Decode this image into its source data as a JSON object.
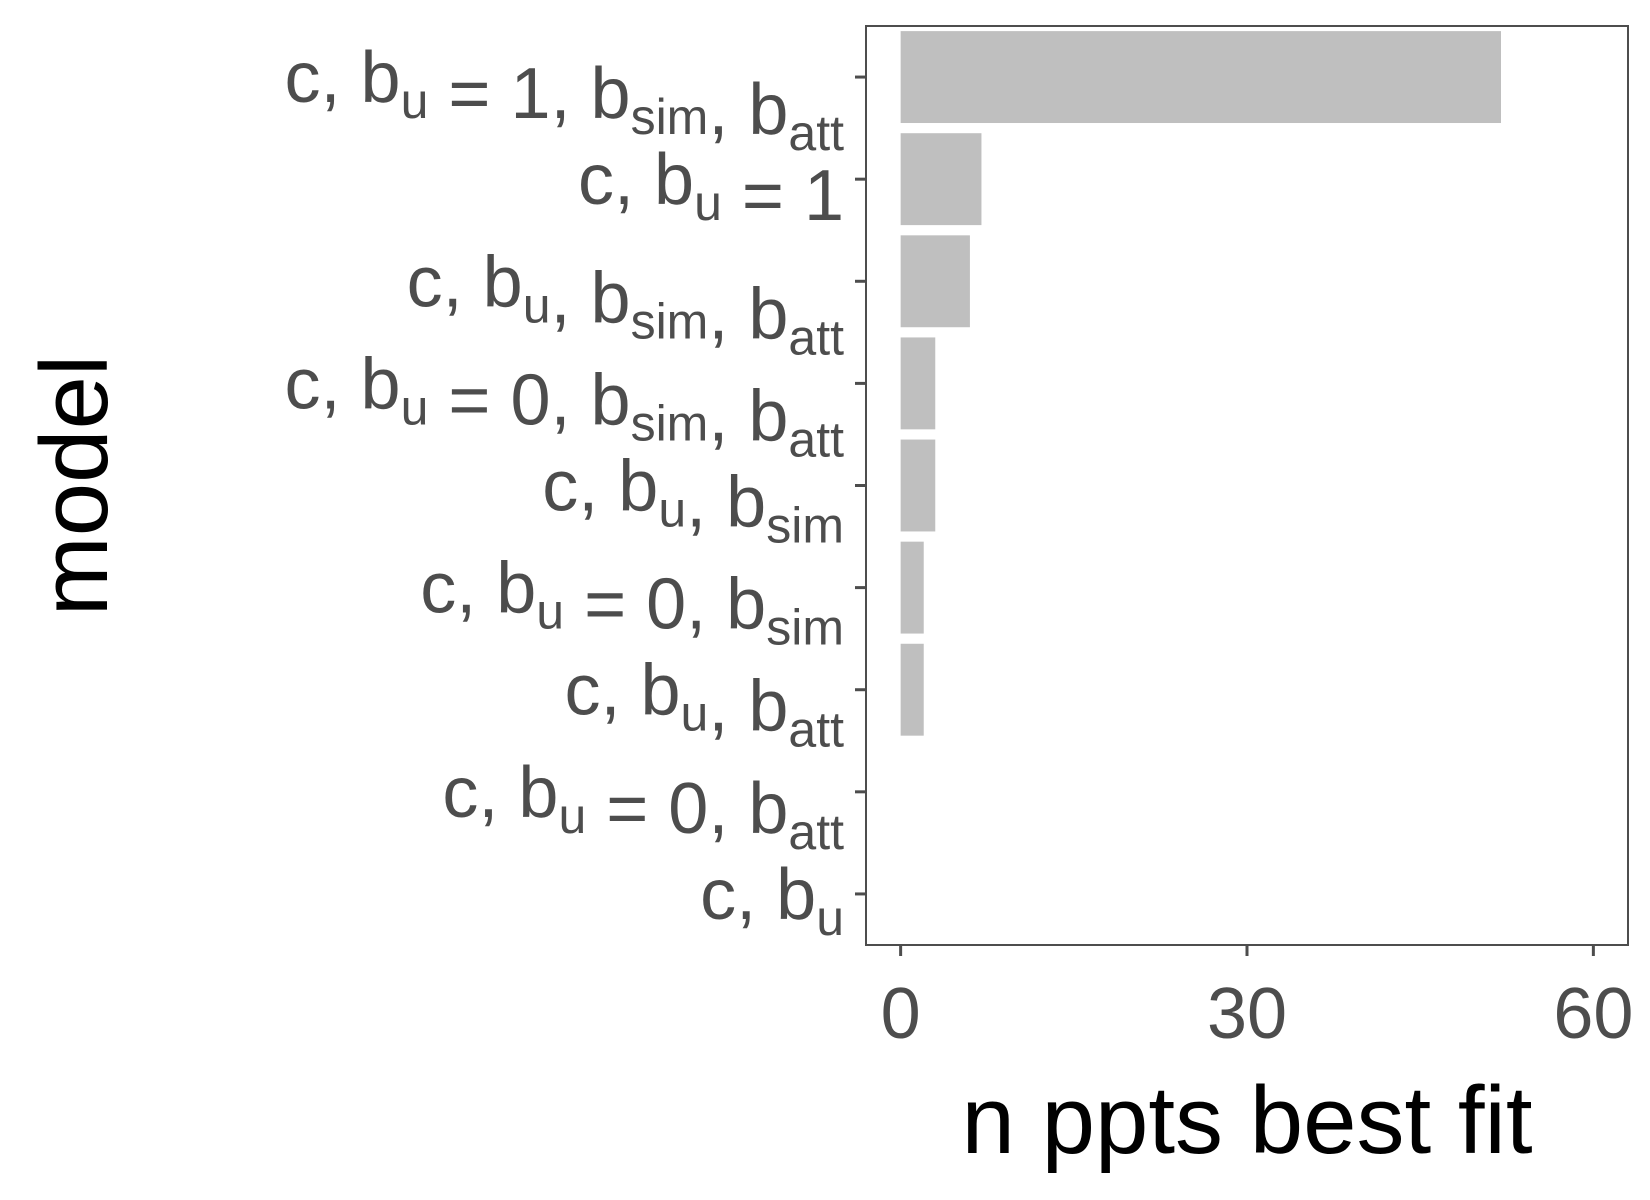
{
  "chart_data": {
    "type": "bar",
    "orientation": "horizontal",
    "categories": [
      [
        {
          "t": "c, b"
        },
        {
          "t": "u",
          "s": true
        },
        {
          "t": " = 1, b"
        },
        {
          "t": "sim",
          "s": true
        },
        {
          "t": ", b"
        },
        {
          "t": "att",
          "s": true
        }
      ],
      [
        {
          "t": "c, b"
        },
        {
          "t": "u",
          "s": true
        },
        {
          "t": " = 1"
        }
      ],
      [
        {
          "t": "c, b"
        },
        {
          "t": "u",
          "s": true
        },
        {
          "t": ", b"
        },
        {
          "t": "sim",
          "s": true
        },
        {
          "t": ", b"
        },
        {
          "t": "att",
          "s": true
        }
      ],
      [
        {
          "t": "c, b"
        },
        {
          "t": "u",
          "s": true
        },
        {
          "t": " = 0, b"
        },
        {
          "t": "sim",
          "s": true
        },
        {
          "t": ", b"
        },
        {
          "t": "att",
          "s": true
        }
      ],
      [
        {
          "t": "c, b"
        },
        {
          "t": "u",
          "s": true
        },
        {
          "t": ", b"
        },
        {
          "t": "sim",
          "s": true
        }
      ],
      [
        {
          "t": "c, b"
        },
        {
          "t": "u",
          "s": true
        },
        {
          "t": " = 0, b"
        },
        {
          "t": "sim",
          "s": true
        }
      ],
      [
        {
          "t": "c, b"
        },
        {
          "t": "u",
          "s": true
        },
        {
          "t": ", b"
        },
        {
          "t": "att",
          "s": true
        }
      ],
      [
        {
          "t": "c, b"
        },
        {
          "t": "u",
          "s": true
        },
        {
          "t": " = 0, b"
        },
        {
          "t": "att",
          "s": true
        }
      ],
      [
        {
          "t": "c, b"
        },
        {
          "t": "u",
          "s": true
        }
      ]
    ],
    "values": [
      52,
      7,
      6,
      3,
      3,
      2,
      2,
      0,
      0
    ],
    "xlabel": "n ppts best fit",
    "ylabel": "model",
    "xlim": [
      -3,
      63
    ],
    "xticks": [
      0,
      30,
      60
    ],
    "xtick_labels": [
      "0",
      "30",
      "60"
    ],
    "grid": false,
    "bar_color": "#bfbfbf",
    "axis_color": "#4d4d4d",
    "tick_label_color": "#4d4d4d",
    "title_color": "#000000"
  }
}
